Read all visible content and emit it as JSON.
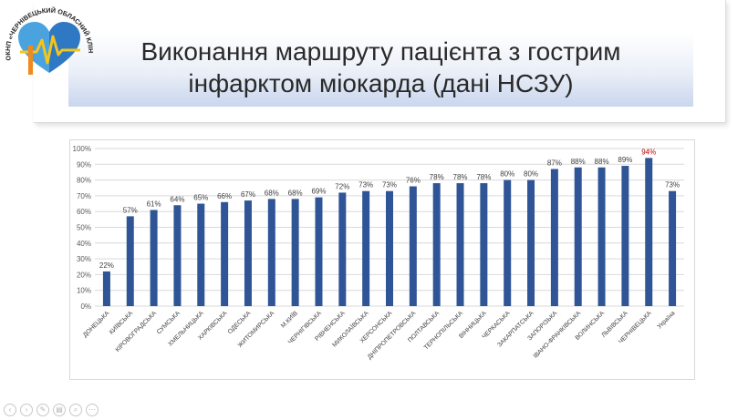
{
  "slide": {
    "title_line1": "Виконання маршруту пацієнта з гострим",
    "title_line2": "інфарктом міокарда (дані НСЗУ)"
  },
  "logo": {
    "text": "ОКНП «ЧЕРНІВЕЦЬКИЙ ОБЛАСНИЙ КЛІНІЧНИЙ КАРДІОЛОГІЧНИЙ ЦЕНТР»",
    "colors": {
      "heart_left": "#4aa3df",
      "heart_right": "#2f78c4",
      "pulse": "#f5c518",
      "figure": "#f08a1c"
    }
  },
  "chart_data": {
    "type": "bar",
    "categories": [
      "ДОНЕЦЬКА",
      "КИЇВСЬКА",
      "КІРОВОГРАДСЬКА",
      "СУМСЬКА",
      "ХМЕЛЬНИЦЬКА",
      "ХАРКІВСЬКА",
      "ОДЕСЬКА",
      "ЖИТОМИРСЬКА",
      "М.КИЇВ",
      "ЧЕРНІГІВСЬКА",
      "РІВНЕНСЬКА",
      "МИКОЛАЇВСЬКА",
      "ХЕРСОНСЬКА",
      "ДНІПРОПЕТРОВСЬКА",
      "ПОЛТАВСЬКА",
      "ТЕРНОПІЛЬСЬКА",
      "ВІННИЦЬКА",
      "ЧЕРКАСЬКА",
      "ЗАКАРПАТСЬКА",
      "ЗАПОРІЗЬКА",
      "ІВАНО-ФРАНКІВСЬКА",
      "ВОЛИНСЬКА",
      "ЛЬВІВСЬКА",
      "ЧЕРНІВЕЦЬКА",
      "Україна"
    ],
    "values": [
      22,
      57,
      61,
      64,
      65,
      66,
      67,
      68,
      68,
      69,
      72,
      73,
      73,
      76,
      78,
      78,
      78,
      80,
      80,
      87,
      88,
      88,
      89,
      94,
      73
    ],
    "labels": [
      "22%",
      "57%",
      "61%",
      "64%",
      "65%",
      "66%",
      "67%",
      "68%",
      "68%",
      "69%",
      "72%",
      "73%",
      "73%",
      "76%",
      "78%",
      "78%",
      "78%",
      "80%",
      "80%",
      "87%",
      "88%",
      "88%",
      "89%",
      "94%",
      "73%"
    ],
    "highlight_index": 23,
    "yticks": [
      "0%",
      "10%",
      "20%",
      "30%",
      "40%",
      "50%",
      "60%",
      "70%",
      "80%",
      "90%",
      "100%"
    ],
    "ylim": [
      0,
      100
    ],
    "grid": true,
    "colors": {
      "bar": "#2f5597",
      "label": "#404040",
      "highlight_label": "#c00000",
      "grid": "#d9d9d9"
    }
  },
  "controls": [
    "prev-icon",
    "next-icon",
    "pen-icon",
    "slides-icon",
    "zoom-icon",
    "more-icon"
  ]
}
